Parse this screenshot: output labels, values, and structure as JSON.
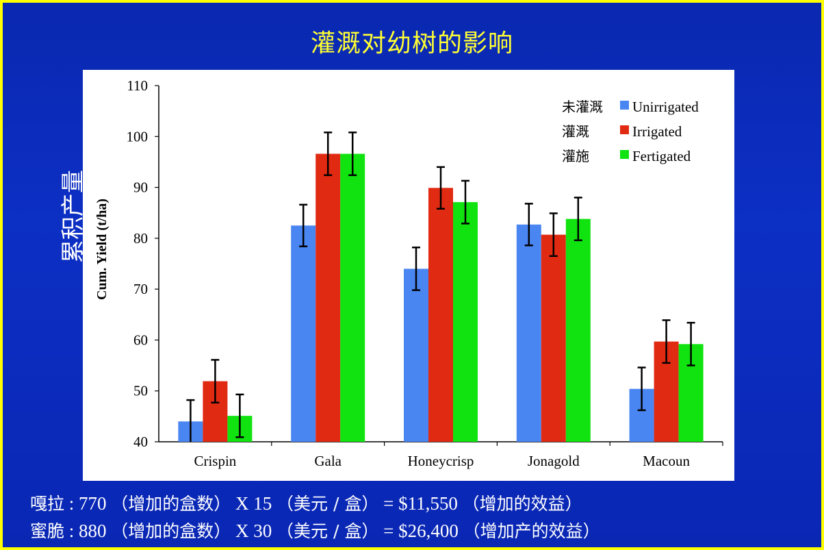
{
  "title": "灌溉对幼树的影响",
  "y_label_cn": "累积产量",
  "colors": {
    "background": "#0b2bbd",
    "border": "#ffff00",
    "title": "#ffff33",
    "unirrigated": "#4a86f2",
    "irrigated": "#e12a12",
    "fertigated": "#11e311"
  },
  "chart_data": {
    "type": "bar",
    "ylabel": "Cum. Yield (t/ha)",
    "ylim": [
      40,
      110
    ],
    "yticks": [
      40,
      50,
      60,
      70,
      80,
      90,
      100,
      110
    ],
    "categories": [
      "Crispin",
      "Gala",
      "Honeycrisp",
      "Jonagold",
      "Macoun"
    ],
    "series": [
      {
        "name": "Unirrigated",
        "legend_cn": "未灌溉",
        "color": "#4a86f2",
        "values": [
          44,
          82.5,
          74,
          82.7,
          50.4
        ],
        "errors": [
          4.2,
          4.1,
          4.2,
          4.1,
          4.2
        ]
      },
      {
        "name": "Irrigated",
        "legend_cn": "灌溉",
        "color": "#e12a12",
        "values": [
          51.9,
          96.6,
          89.9,
          80.7,
          59.7
        ],
        "errors": [
          4.2,
          4.2,
          4.1,
          4.2,
          4.2
        ]
      },
      {
        "name": "Fertigated",
        "legend_cn": "灌施",
        "color": "#11e311",
        "values": [
          45.1,
          96.6,
          87.1,
          83.8,
          59.2
        ],
        "errors": [
          4.2,
          4.2,
          4.2,
          4.2,
          4.2
        ]
      }
    ],
    "legend_position": "top-right",
    "grid": false
  },
  "notes": [
    {
      "lead": "嘎拉",
      "parts": [
        ": 770",
        "（增加的盒数）",
        "X 15",
        "（美元 / 盒）",
        "= $11,550",
        "（增加的效益）"
      ]
    },
    {
      "lead": "蜜脆",
      "parts": [
        ": 880",
        "（增加的盒数）",
        "X 30",
        "（美元 / 盒）",
        "= $26,400",
        "（增加产的效益）"
      ]
    }
  ]
}
